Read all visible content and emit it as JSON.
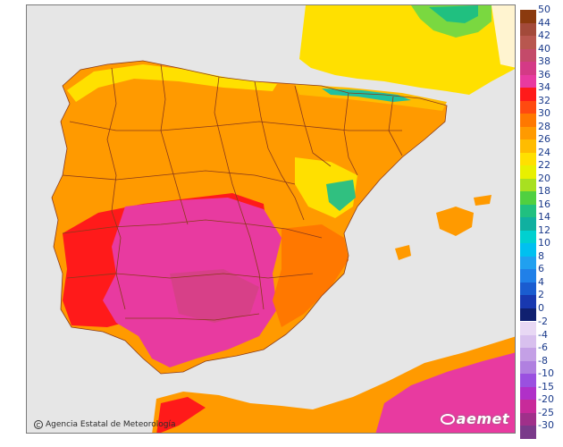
{
  "credit": {
    "text": "Agencia Estatal de Meteorología",
    "icon": "copyright-icon"
  },
  "brand": {
    "text": "aemet",
    "icon": "aemet-logo-icon"
  },
  "legend": {
    "positive": [
      {
        "label": "50",
        "color": "#8b3a0e"
      },
      {
        "label": "44",
        "color": "#a34a3a"
      },
      {
        "label": "42",
        "color": "#b8574f"
      },
      {
        "label": "40",
        "color": "#c44a6a"
      },
      {
        "label": "38",
        "color": "#d43a86"
      },
      {
        "label": "36",
        "color": "#e83aa0"
      },
      {
        "label": "34",
        "color": "#ff1a1a"
      },
      {
        "label": "32",
        "color": "#ff4a10"
      },
      {
        "label": "30",
        "color": "#ff7800"
      },
      {
        "label": "28",
        "color": "#ff9a00"
      },
      {
        "label": "26",
        "color": "#ffbc00"
      },
      {
        "label": "24",
        "color": "#ffe000"
      },
      {
        "label": "22",
        "color": "#e8f000"
      },
      {
        "label": "20",
        "color": "#a8e020"
      },
      {
        "label": "18",
        "color": "#50d040"
      },
      {
        "label": "16",
        "color": "#20c080"
      },
      {
        "label": "14",
        "color": "#10b0a0"
      },
      {
        "label": "12",
        "color": "#00d0d0"
      },
      {
        "label": "10",
        "color": "#00c0f0"
      },
      {
        "label": "8",
        "color": "#20a0f0"
      },
      {
        "label": "6",
        "color": "#2080e8"
      },
      {
        "label": "4",
        "color": "#1a5cd0"
      },
      {
        "label": "2",
        "color": "#1838b0"
      },
      {
        "label": "0",
        "color": "#102070"
      }
    ],
    "negative": [
      {
        "label": "-2",
        "color": "#e8d8f4"
      },
      {
        "label": "-4",
        "color": "#d8c0ee"
      },
      {
        "label": "-6",
        "color": "#c4a0e6"
      },
      {
        "label": "-8",
        "color": "#b080e0"
      },
      {
        "label": "-10",
        "color": "#9a50e0"
      },
      {
        "label": "-15",
        "color": "#b030c8"
      },
      {
        "label": "-20",
        "color": "#c82a9a"
      },
      {
        "label": "-25",
        "color": "#a0308a"
      },
      {
        "label": "-30",
        "color": "#7a3a8a"
      }
    ]
  }
}
